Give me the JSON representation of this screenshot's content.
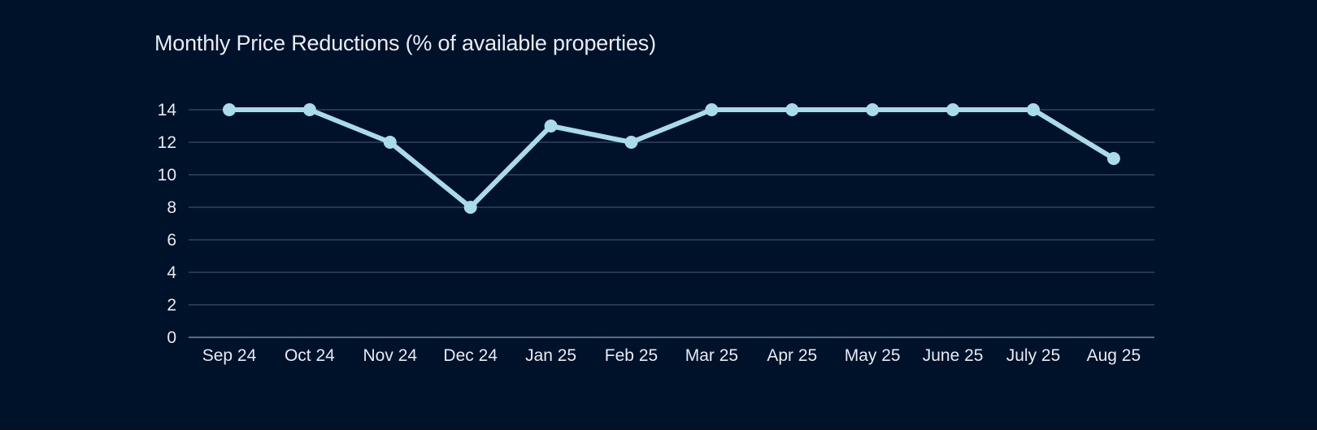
{
  "chart_data": {
    "type": "line",
    "title": "Monthly Price Reductions (% of available properties)",
    "xlabel": "",
    "ylabel": "",
    "categories": [
      "Sep 24",
      "Oct 24",
      "Nov 24",
      "Dec 24",
      "Jan 25",
      "Feb 25",
      "Mar 25",
      "Apr 25",
      "May 25",
      "June 25",
      "July 25",
      "Aug 25"
    ],
    "series": [
      {
        "values": [
          14,
          14,
          12,
          8,
          13,
          12,
          14,
          14,
          14,
          14,
          14,
          11
        ],
        "color": "#a8dcea"
      }
    ],
    "ylim": [
      0,
      14
    ],
    "yticks": [
      0,
      2,
      4,
      6,
      8,
      10,
      12,
      14
    ],
    "grid": true,
    "legend": "none"
  },
  "colors": {
    "background": "#00112a",
    "gridline": "#34435a",
    "axis_text": "#e6ebf1",
    "line": "#a8dcea"
  }
}
